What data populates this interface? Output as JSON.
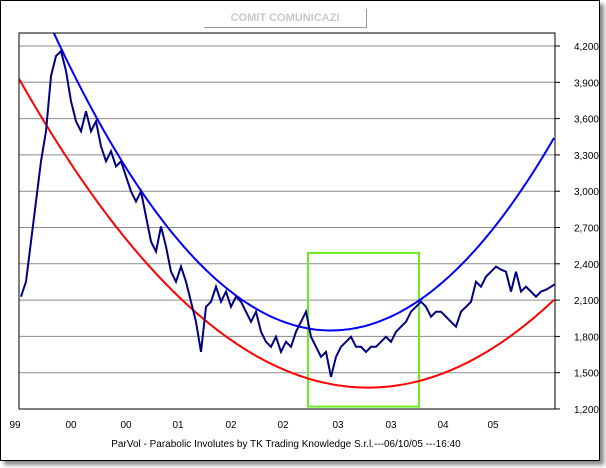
{
  "chart_data": {
    "type": "line",
    "title": "COMIT COMUNICAZI",
    "footer": "ParVol - Parabolic Involutes by TK Trading Knowledge S.r.l.---06/10/05 ---16:40",
    "xlabel": "",
    "ylabel": "",
    "ylim": [
      1200,
      4200
    ],
    "xlim": [
      -0.4,
      106.8
    ],
    "y_ticks": [
      4200,
      3900,
      3600,
      3300,
      3000,
      2700,
      2400,
      2100,
      1800,
      1500,
      1200
    ],
    "y_tick_labels": [
      "4,200",
      "3,900",
      "3,600",
      "3,300",
      "3,000",
      "2,700",
      "2,400",
      "2,100",
      "1,800",
      "1,500",
      "1,200"
    ],
    "x_ticks": [
      {
        "t": -1.2,
        "label": "99"
      },
      {
        "t": 10,
        "label": "00"
      },
      {
        "t": 21,
        "label": "00"
      },
      {
        "t": 31.4,
        "label": "01"
      },
      {
        "t": 42,
        "label": "02"
      },
      {
        "t": 52.4,
        "label": "02"
      },
      {
        "t": 63.4,
        "label": "03"
      },
      {
        "t": 74,
        "label": "03"
      },
      {
        "t": 84.4,
        "label": "04"
      },
      {
        "t": 94.4,
        "label": "05"
      }
    ],
    "grid": true,
    "series": [
      {
        "name": "price",
        "color": "#000080",
        "values": [
          2128,
          2252,
          2584,
          2915,
          3247,
          3495,
          3951,
          4117,
          4158,
          3993,
          3744,
          3578,
          3495,
          3661,
          3495,
          3578,
          3371,
          3247,
          3330,
          3205,
          3247,
          3123,
          2998,
          2915,
          2998,
          2791,
          2584,
          2501,
          2708,
          2543,
          2335,
          2252,
          2377,
          2252,
          2087,
          1921,
          1672,
          2045,
          2087,
          2211,
          2087,
          2170,
          2045,
          2128,
          2087,
          2004,
          1921,
          2004,
          1838,
          1755,
          1714,
          1797,
          1672,
          1755,
          1714,
          1838,
          1921,
          2004,
          1797,
          1714,
          1631,
          1672,
          1465,
          1631,
          1714,
          1755,
          1797,
          1714,
          1714,
          1672,
          1714,
          1714,
          1755,
          1797,
          1755,
          1838,
          1880,
          1921,
          2004,
          2045,
          2087,
          2045,
          1963,
          2004,
          2004,
          1963,
          1921,
          1880,
          2004,
          2045,
          2087,
          2252,
          2211,
          2294,
          2335,
          2377,
          2352,
          2335,
          2170,
          2335,
          2170,
          2211,
          2170,
          2128,
          2170,
          2186,
          2211,
          2236
        ]
      }
    ],
    "parabolas": [
      {
        "name": "upper-involute",
        "color": "#0000ff",
        "vertex_t": 62,
        "vertex_value": 1849,
        "a": 0.8
      },
      {
        "name": "lower-involute",
        "color": "#ff0000",
        "vertex_t": 69.4,
        "vertex_value": 1377,
        "a": 0.524
      }
    ],
    "highlight_box": {
      "color": "#66ee22",
      "t_range": [
        57.4,
        79.6
      ],
      "value_range": [
        1220,
        2490
      ]
    }
  }
}
